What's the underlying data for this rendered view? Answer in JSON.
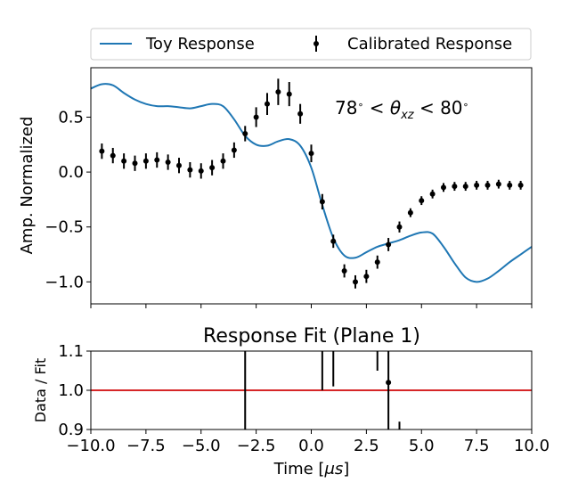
{
  "chart_data": [
    {
      "type": "line",
      "legend": {
        "placement": "top",
        "entries": [
          "Toy Response",
          "Calibrated Response"
        ]
      },
      "annotation": {
        "parts": [
          {
            "text": "78",
            "style": "normal"
          },
          {
            "text": "∘",
            "style": "sup"
          },
          {
            "text": " < ",
            "style": "normal"
          },
          {
            "text": "θ",
            "style": "italic"
          },
          {
            "text": "xz",
            "style": "sub"
          },
          {
            "text": " < 80",
            "style": "normal"
          },
          {
            "text": "∘",
            "style": "sup"
          }
        ]
      },
      "ylabel": "Amp. Normalized",
      "xlim": [
        -10,
        10
      ],
      "ylim": [
        -1.2,
        0.95
      ],
      "yticks": [
        0.5,
        0.0,
        -0.5,
        -1.0
      ],
      "ytick_labels": [
        "0.5",
        "0.0",
        "−0.5",
        "−1.0"
      ],
      "xticks": [
        -10,
        -7.5,
        -5,
        -2.5,
        0,
        2.5,
        5,
        7.5,
        10
      ],
      "grid": false,
      "series": [
        {
          "name": "Toy Response",
          "kind": "line",
          "color": "#1f77b4",
          "x": [
            -10,
            -9.5,
            -9,
            -8.5,
            -8,
            -7.5,
            -7,
            -6.5,
            -6,
            -5.5,
            -5,
            -4.5,
            -4,
            -3.5,
            -3,
            -2.5,
            -2,
            -1.5,
            -1,
            -0.5,
            0,
            0.5,
            1,
            1.5,
            2,
            2.5,
            3,
            3.5,
            4,
            4.5,
            5,
            5.5,
            6,
            6.5,
            7,
            7.5,
            8,
            8.5,
            9,
            9.5,
            10
          ],
          "y": [
            0.76,
            0.8,
            0.79,
            0.72,
            0.66,
            0.62,
            0.6,
            0.6,
            0.59,
            0.58,
            0.6,
            0.62,
            0.6,
            0.48,
            0.33,
            0.25,
            0.24,
            0.28,
            0.3,
            0.24,
            0.04,
            -0.3,
            -0.6,
            -0.76,
            -0.78,
            -0.73,
            -0.68,
            -0.65,
            -0.62,
            -0.58,
            -0.55,
            -0.56,
            -0.68,
            -0.83,
            -0.96,
            -1.0,
            -0.97,
            -0.9,
            -0.82,
            -0.75,
            -0.68
          ]
        },
        {
          "name": "Calibrated Response",
          "kind": "errorbar",
          "color": "#000000",
          "x": [
            -9.5,
            -9,
            -8.5,
            -8,
            -7.5,
            -7,
            -6.5,
            -6,
            -5.5,
            -5,
            -4.5,
            -4,
            -3.5,
            -3,
            -2.5,
            -2,
            -1.5,
            -1,
            -0.5,
            0,
            0.5,
            1,
            1.5,
            2,
            2.5,
            3,
            3.5,
            4,
            4.5,
            5,
            5.5,
            6,
            6.5,
            7,
            7.5,
            8,
            8.5,
            9,
            9.5
          ],
          "y": [
            0.19,
            0.15,
            0.1,
            0.08,
            0.1,
            0.11,
            0.09,
            0.06,
            0.02,
            0.01,
            0.04,
            0.1,
            0.2,
            0.35,
            0.5,
            0.62,
            0.73,
            0.71,
            0.53,
            0.17,
            -0.27,
            -0.63,
            -0.9,
            -1.0,
            -0.95,
            -0.82,
            -0.66,
            -0.5,
            -0.37,
            -0.26,
            -0.2,
            -0.14,
            -0.13,
            -0.13,
            -0.12,
            -0.12,
            -0.11,
            -0.12,
            -0.12
          ],
          "yerr": [
            0.07,
            0.07,
            0.07,
            0.07,
            0.07,
            0.07,
            0.07,
            0.07,
            0.07,
            0.07,
            0.07,
            0.07,
            0.07,
            0.07,
            0.09,
            0.1,
            0.12,
            0.11,
            0.09,
            0.08,
            0.07,
            0.06,
            0.06,
            0.06,
            0.06,
            0.06,
            0.06,
            0.05,
            0.04,
            0.04,
            0.04,
            0.04,
            0.04,
            0.04,
            0.04,
            0.04,
            0.04,
            0.04,
            0.04
          ]
        }
      ]
    },
    {
      "type": "scatter",
      "title": "Response Fit (Plane 1)",
      "ylabel": "Data / Fit",
      "xlabel_parts": [
        {
          "text": "Time [",
          "style": "normal"
        },
        {
          "text": "μs",
          "style": "italic"
        },
        {
          "text": "]",
          "style": "normal"
        }
      ],
      "xlim": [
        -10,
        10
      ],
      "ylim": [
        0.9,
        1.1
      ],
      "yticks": [
        1.1,
        1.0,
        0.9
      ],
      "ytick_labels": [
        "1.1",
        "1.0",
        "0.9"
      ],
      "xticks": [
        -10,
        -7.5,
        -5,
        -2.5,
        0,
        2.5,
        5,
        7.5,
        10
      ],
      "xtick_labels": [
        "−10.0",
        "−7.5",
        "−5.0",
        "−2.5",
        "0.0",
        "2.5",
        "5.0",
        "7.5",
        "10.0"
      ],
      "grid": false,
      "reference_line": {
        "y": 1.0,
        "color": "#d62728"
      },
      "ratio_points": [
        {
          "x": -3,
          "y": 1.3,
          "yerr": 0.5
        },
        {
          "x": 0.5,
          "y": 1.6,
          "yerr": 0.6
        },
        {
          "x": 1.0,
          "y": 1.12,
          "yerr": 0.11
        },
        {
          "x": 3.0,
          "y": 1.17,
          "yerr": 0.12
        },
        {
          "x": 3.5,
          "y": 1.02,
          "yerr": 0.15
        },
        {
          "x": 4.0,
          "y": 0.82,
          "yerr": 0.1
        }
      ]
    }
  ]
}
